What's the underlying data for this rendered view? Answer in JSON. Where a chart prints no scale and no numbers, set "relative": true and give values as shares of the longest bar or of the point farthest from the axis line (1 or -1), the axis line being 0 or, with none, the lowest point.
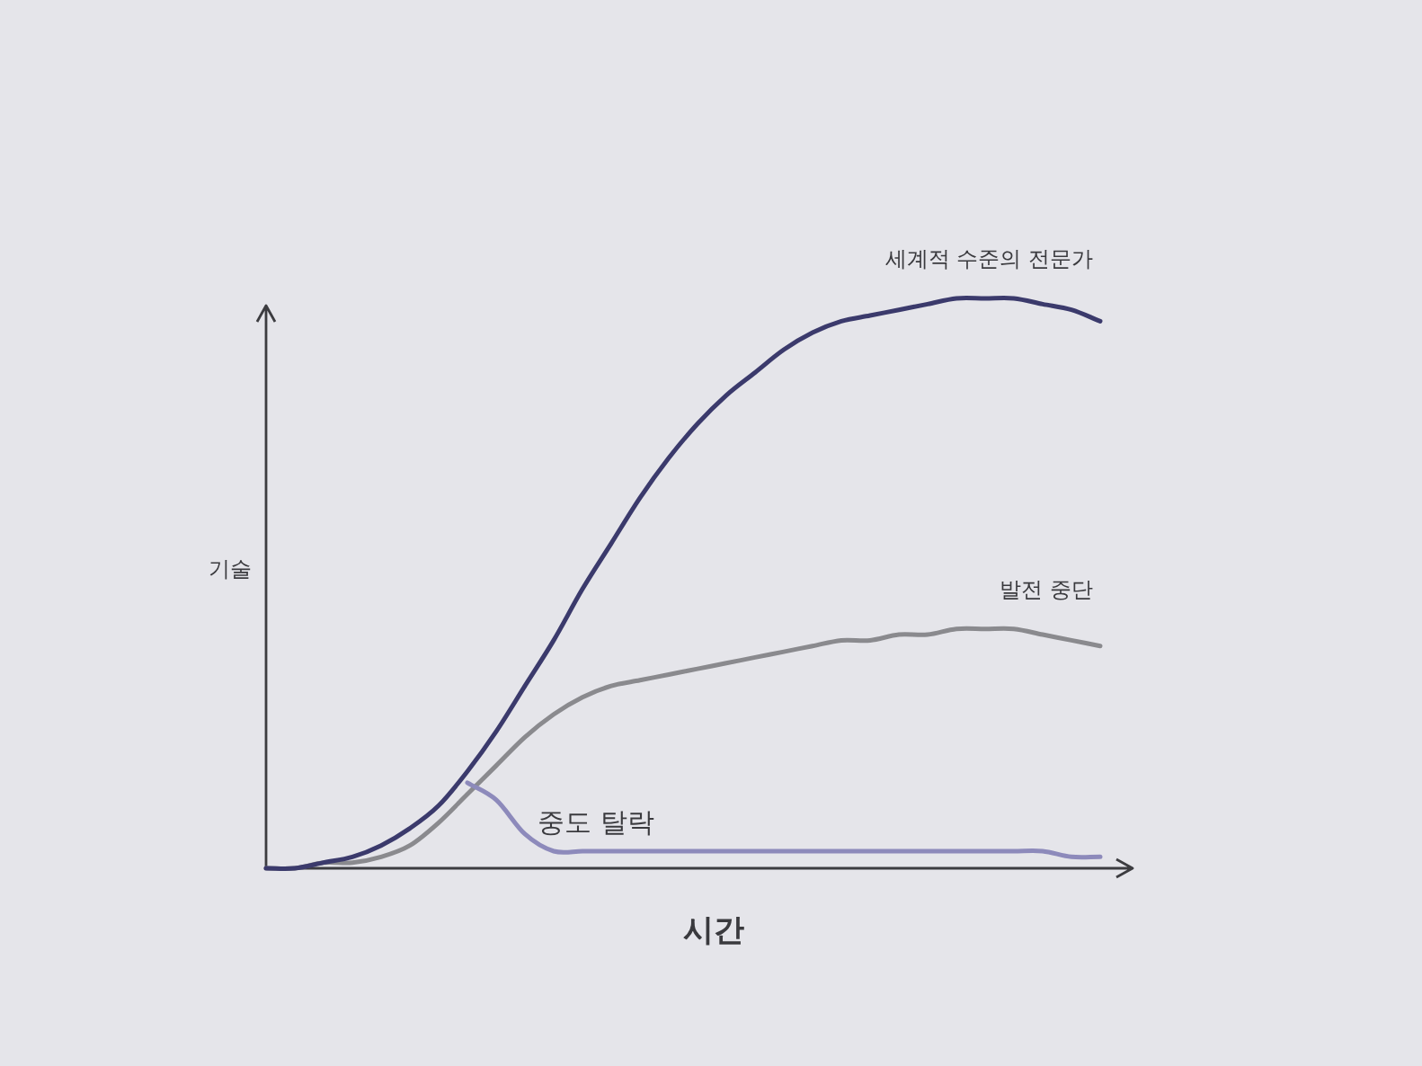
{
  "chart_data": {
    "type": "line",
    "xlabel": "시간",
    "ylabel": "기술",
    "relative": true,
    "marker": "none",
    "line_style": "solid",
    "categories": [
      null,
      null,
      null,
      null,
      null,
      null,
      null,
      null,
      null,
      null,
      null,
      null,
      null,
      null,
      null,
      null,
      null,
      null,
      null,
      null,
      null,
      null,
      null,
      null,
      null,
      null,
      null,
      null,
      null,
      null
    ],
    "series": [
      {
        "name": "발전 중단",
        "color": "#8a8a8e",
        "values": [
          0,
          0,
          0.01,
          0.01,
          0.02,
          0.04,
          0.08,
          0.13,
          0.18,
          0.23,
          0.27,
          0.3,
          0.32,
          0.33,
          0.34,
          0.35,
          0.36,
          0.37,
          0.38,
          0.39,
          0.4,
          0.4,
          0.41,
          0.41,
          0.42,
          0.42,
          0.42,
          0.41,
          0.4,
          0.39
        ]
      },
      {
        "name": "중도 탈락",
        "color": "#8d8abb",
        "values": [
          null,
          null,
          null,
          null,
          null,
          null,
          null,
          0.15,
          0.12,
          0.06,
          0.03,
          0.03,
          0.03,
          0.03,
          0.03,
          0.03,
          0.03,
          0.03,
          0.03,
          0.03,
          0.03,
          0.03,
          0.03,
          0.03,
          0.03,
          0.03,
          0.03,
          0.03,
          0.02,
          0.02
        ]
      },
      {
        "name": "세계적 수준의 전문가",
        "color": "#3b3a6c",
        "values": [
          0,
          0,
          0.01,
          0.02,
          0.04,
          0.07,
          0.11,
          0.17,
          0.24,
          0.32,
          0.4,
          0.49,
          0.57,
          0.65,
          0.72,
          0.78,
          0.83,
          0.87,
          0.91,
          0.94,
          0.96,
          0.97,
          0.98,
          0.99,
          1.0,
          1.0,
          1.0,
          0.99,
          0.98,
          0.96
        ]
      }
    ]
  }
}
